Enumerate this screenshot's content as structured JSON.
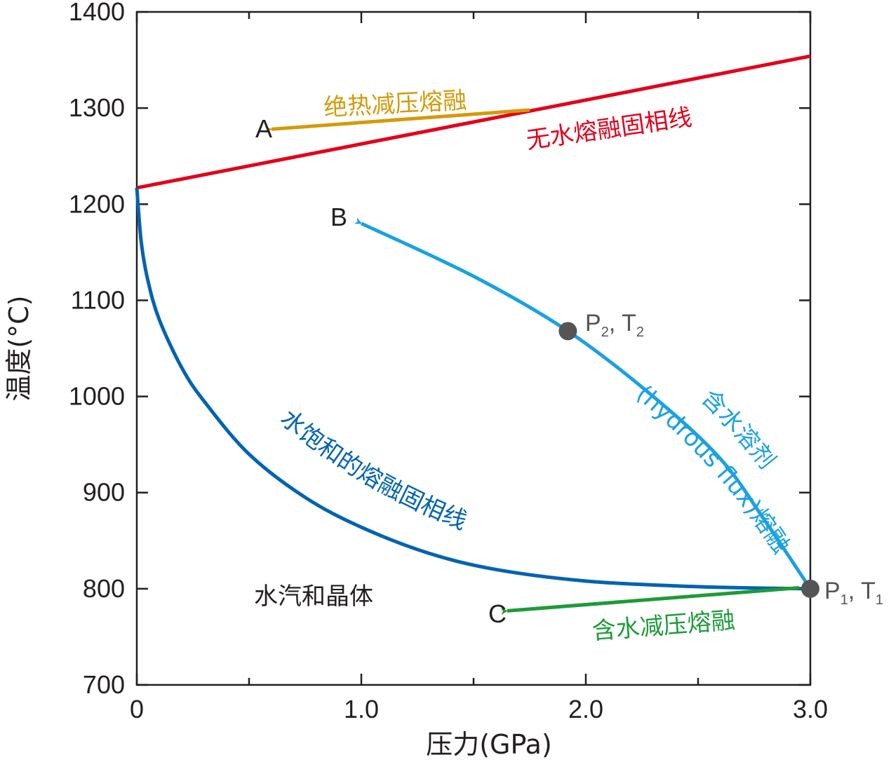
{
  "chart_data": {
    "type": "line",
    "xlabel": "压力(GPa)",
    "ylabel": "温度(°C)",
    "xlim": [
      0,
      3.0
    ],
    "ylim": [
      700,
      1400
    ],
    "x_ticks": [
      "0",
      "1.0",
      "2.0",
      "3.0"
    ],
    "y_ticks": [
      "700",
      "800",
      "900",
      "1000",
      "1100",
      "1200",
      "1300",
      "1400"
    ],
    "colors": {
      "dry_solidus": "#e3001b",
      "wet_solidus": "#0063b1",
      "hydrous_path": "#1ba1e2",
      "adiabatic_path": "#d49a0a",
      "hydrous_decompression": "#1d9b38",
      "point": "#555555"
    },
    "series": [
      {
        "name": "无水熔融固相线",
        "label": "无水熔融固相线",
        "x": [
          0,
          3.0
        ],
        "y": [
          1217,
          1354
        ]
      },
      {
        "name": "水饱和的熔融固相线",
        "label": "水饱和的熔融固相线",
        "x": [
          0.0,
          0.02,
          0.05,
          0.1,
          0.2,
          0.3,
          0.5,
          0.75,
          1.0,
          1.3,
          1.6,
          2.0,
          2.4,
          2.7,
          3.0
        ],
        "y": [
          1217,
          1160,
          1120,
          1080,
          1030,
          995,
          940,
          895,
          864,
          837,
          820,
          808,
          803,
          801,
          800
        ]
      },
      {
        "name": "含水溶剂(hydrous flux)熔融",
        "label_line1": "含水溶剂",
        "label_line2": "(hydrous flux)熔融",
        "x": [
          3.0,
          2.8,
          2.6,
          2.3,
          1.92,
          1.5,
          1.0
        ],
        "y": [
          800,
          870,
          935,
          1000,
          1068,
          1125,
          1180
        ]
      },
      {
        "name": "绝热减压熔融",
        "label": "绝热减压熔融",
        "x": [
          1.75,
          0.6
        ],
        "y": [
          1298,
          1278
        ]
      },
      {
        "name": "含水减压熔融",
        "label": "含水减压熔融",
        "x": [
          2.95,
          1.65
        ],
        "y": [
          801,
          777
        ]
      }
    ],
    "points": [
      {
        "name": "P1,T1",
        "label_main": "P",
        "label_sub": "1",
        "label_mid": ", T",
        "label_sub2": "1",
        "x": 3.0,
        "y": 800
      },
      {
        "name": "P2,T2",
        "label_main": "P",
        "label_sub": "2",
        "label_mid": ", T",
        "label_sub2": "2",
        "x": 1.92,
        "y": 1068
      }
    ],
    "endpoint_labels": [
      {
        "text": "A",
        "x": 0.57,
        "y": 1278
      },
      {
        "text": "B",
        "x": 0.9,
        "y": 1190
      },
      {
        "text": "C",
        "x": 1.6,
        "y": 777
      }
    ],
    "region_label": "水汽和晶体",
    "grid": false,
    "legend": "none"
  }
}
